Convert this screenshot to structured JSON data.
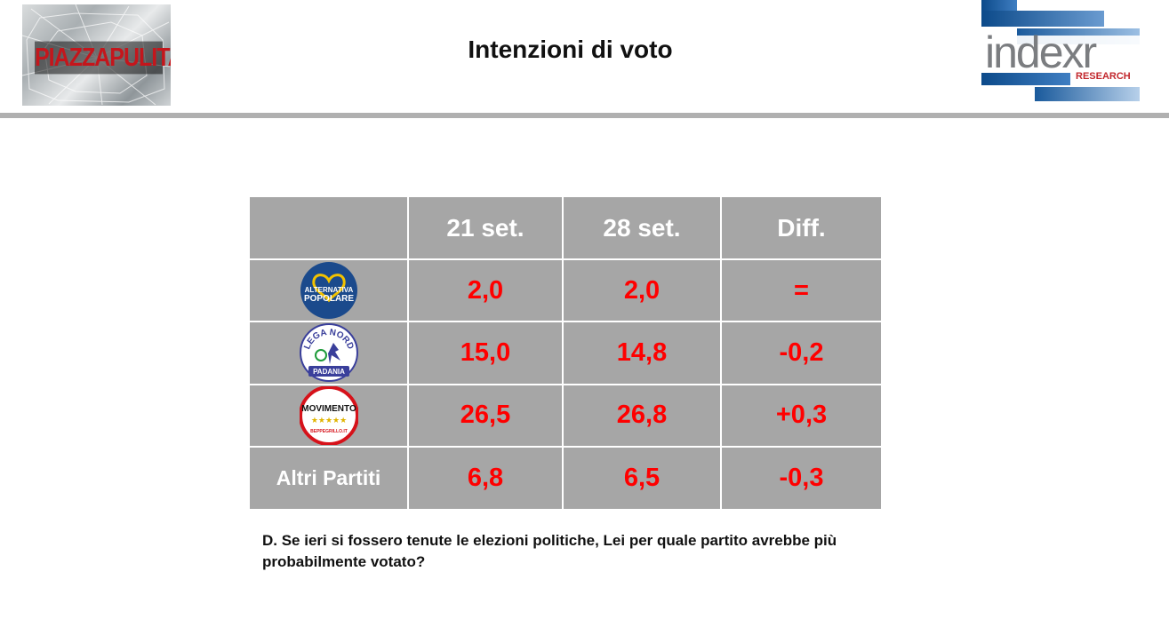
{
  "header": {
    "title": "Intenzioni di voto",
    "left_logo_text": "PIAZZAPULITA",
    "right_logo_text": "indexr",
    "right_logo_sub": "RESEARCH"
  },
  "table": {
    "columns": [
      "",
      "21 set.",
      "28 set.",
      "Diff."
    ],
    "rows": [
      {
        "party": "Alternativa Popolare",
        "logo_lines": [
          "ALTERNATIVA",
          "POPOLARE"
        ],
        "v1": "2,0",
        "v2": "2,0",
        "diff": "="
      },
      {
        "party": "Lega Nord",
        "logo_lines": [
          "LEGA NORD",
          "PADANIA"
        ],
        "v1": "15,0",
        "v2": "14,8",
        "diff": "-0,2"
      },
      {
        "party": "Movimento 5 Stelle",
        "logo_lines": [
          "MOVIMENTO",
          "BEPPEGRILLO.IT"
        ],
        "v1": "26,5",
        "v2": "26,8",
        "diff": "+0,3"
      },
      {
        "party": "Altri Partiti",
        "label": "Altri Partiti",
        "v1": "6,8",
        "v2": "6,5",
        "diff": "-0,3"
      }
    ]
  },
  "question": "D. Se ieri si fossero tenute le elezioni politiche, Lei per quale partito avrebbe più probabilmente votato?",
  "colors": {
    "value_red": "#ff0000",
    "table_gray": "#a6a6a6",
    "rule_gray": "#b0b0b0",
    "ap_blue": "#1b4a8c",
    "lega_blue": "#3a3f9b",
    "m5s_red": "#d6121a"
  }
}
